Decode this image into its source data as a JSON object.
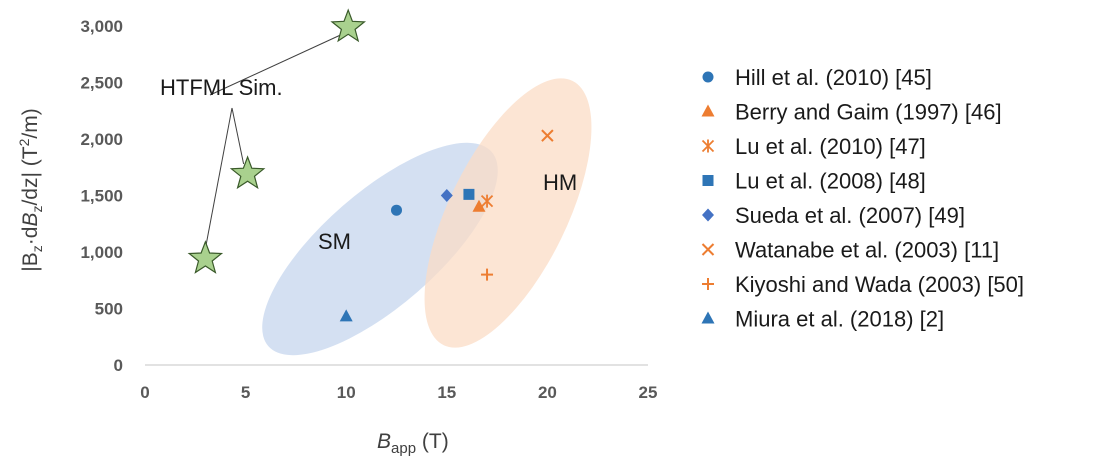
{
  "chart_data": {
    "type": "scatter",
    "title": "",
    "xlim": [
      0,
      25
    ],
    "ylim": [
      0,
      3000
    ],
    "x_ticks": [
      "0",
      "5",
      "10",
      "15",
      "20",
      "25"
    ],
    "y_ticks": [
      "0",
      "500",
      "1,000",
      "1,500",
      "2,000",
      "2,500",
      "3,000"
    ],
    "grid": false,
    "legend": "right",
    "xlabel": {
      "main": "B",
      "sub": "app",
      "unit": " (T)"
    },
    "ylabel": {
      "p1": "|B",
      "s1": "z",
      "p2": "·d",
      "p3": "B",
      "s2": "z",
      "p4": "/dz| (T",
      "sup": "2",
      "p5": "/m)"
    },
    "series": [
      {
        "name": "Hill et al. (2010) [45]",
        "marker": "circle",
        "color": "#2e75b6",
        "points": [
          {
            "x": 12.5,
            "y": 1370
          }
        ]
      },
      {
        "name": "Berry and Gaim (1997) [46]",
        "marker": "triangle",
        "color": "#ed7d31",
        "points": [
          {
            "x": 16.6,
            "y": 1400
          }
        ]
      },
      {
        "name": "Lu et al. (2010) [47]",
        "marker": "asterisk",
        "color": "#ed7d31",
        "points": [
          {
            "x": 17.0,
            "y": 1450
          }
        ]
      },
      {
        "name": "Lu et al. (2008) [48]",
        "marker": "square",
        "color": "#2e75b6",
        "points": [
          {
            "x": 16.1,
            "y": 1510
          }
        ]
      },
      {
        "name": "Sueda et al. (2007) [49]",
        "marker": "diamond",
        "color": "#4472c4",
        "points": [
          {
            "x": 15.0,
            "y": 1500
          }
        ]
      },
      {
        "name": "Watanabe et al. (2003) [11]",
        "marker": "x",
        "color": "#ed7d31",
        "points": [
          {
            "x": 20.0,
            "y": 2030
          }
        ]
      },
      {
        "name": "Kiyoshi and Wada (2003) [50]",
        "marker": "plus",
        "color": "#ed7d31",
        "points": [
          {
            "x": 17.0,
            "y": 800
          }
        ]
      },
      {
        "name": "Miura et al. (2018) [2]",
        "marker": "triangle",
        "color": "#2e75b6",
        "points": [
          {
            "x": 10.0,
            "y": 430
          }
        ]
      }
    ],
    "simulation": {
      "marker": "star",
      "color": "#a9d18e",
      "points": [
        {
          "x": 3.0,
          "y": 940
        },
        {
          "x": 5.1,
          "y": 1690
        },
        {
          "x": 10.1,
          "y": 2990
        }
      ]
    },
    "annotations": {
      "sim_label": "HTFML Sim.",
      "sm_label": "SM",
      "hm_label": "HM"
    },
    "regions": {
      "sm_color": "#c5d5ee",
      "hm_color": "#fbdcc6"
    }
  }
}
